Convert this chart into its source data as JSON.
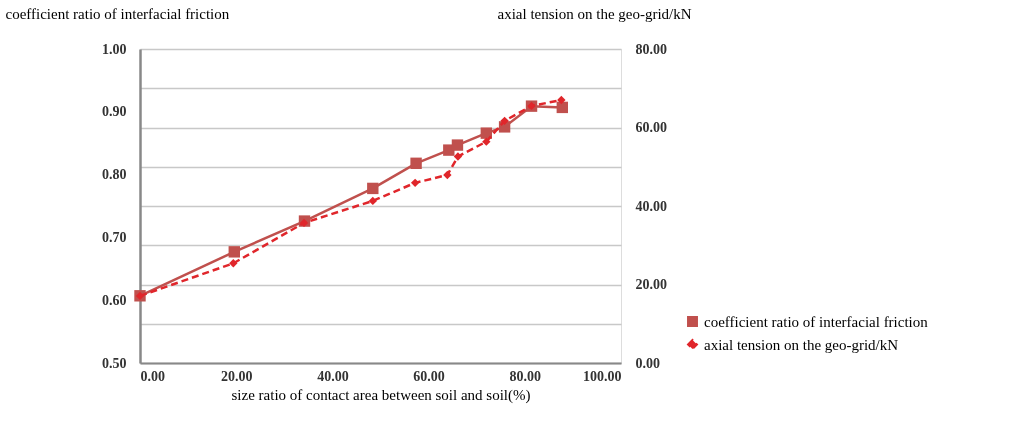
{
  "chart_data": {
    "type": "line",
    "xlabel": "size ratio of contact area between soil and soil(%)",
    "ylabel": "coefficient ratio of interfacial friction",
    "y2label": "axial tension on the geo-grid/kN",
    "xlim": [
      0,
      100
    ],
    "xticks": [
      {
        "value": 0,
        "label": "0.00"
      },
      {
        "value": 20,
        "label": "20.00"
      },
      {
        "value": 40,
        "label": "40.00"
      },
      {
        "value": 60,
        "label": "60.00"
      },
      {
        "value": 80,
        "label": "80.00"
      },
      {
        "value": 100,
        "label": "100.00"
      }
    ],
    "ylim": [
      0.5,
      1.0
    ],
    "yticks": [
      {
        "value": 0.5,
        "label": "0.50"
      },
      {
        "value": 0.6,
        "label": "0.60"
      },
      {
        "value": 0.7,
        "label": "0.70"
      },
      {
        "value": 0.8,
        "label": "0.80"
      },
      {
        "value": 0.9,
        "label": "0.90"
      },
      {
        "value": 1.0,
        "label": "1.00"
      }
    ],
    "y2lim": [
      0,
      80
    ],
    "y2ticks": [
      {
        "value": 0,
        "label": "0.00"
      },
      {
        "value": 10,
        "label": null
      },
      {
        "value": 20,
        "label": "20.00"
      },
      {
        "value": 30,
        "label": null
      },
      {
        "value": 40,
        "label": "40.00"
      },
      {
        "value": 50,
        "label": null
      },
      {
        "value": 60,
        "label": "60.00"
      },
      {
        "value": 70,
        "label": null
      },
      {
        "value": 80,
        "label": "80.00"
      }
    ],
    "grid": "y",
    "legend": "bottom right",
    "series": [
      {
        "name": "coefficient ratio of interfacial friction",
        "color": "#c0504d",
        "marker": "square",
        "line_style": "solid",
        "x": [
          0,
          19.6,
          34.2,
          48.4,
          57.4,
          64.2,
          66,
          72,
          75.8,
          81.4,
          87.8
        ],
        "values": [
          0.607,
          0.677,
          0.726,
          0.778,
          0.818,
          0.839,
          0.847,
          0.866,
          0.876,
          0.909,
          0.907
        ]
      },
      {
        "name": "axial tension on the geo-grid/kN",
        "color": "#e0262b",
        "marker": "diamond",
        "line_style": "dashed",
        "axis": "y2",
        "x": [
          0,
          19.4,
          34.1,
          48.4,
          57.2,
          63.9,
          66.1,
          72,
          75.8,
          81.4,
          87.6
        ],
        "values": [
          17.1,
          25.4,
          35.7,
          41.3,
          45.9,
          47.9,
          52.6,
          56.4,
          61.7,
          65.5,
          67.0
        ]
      }
    ]
  }
}
